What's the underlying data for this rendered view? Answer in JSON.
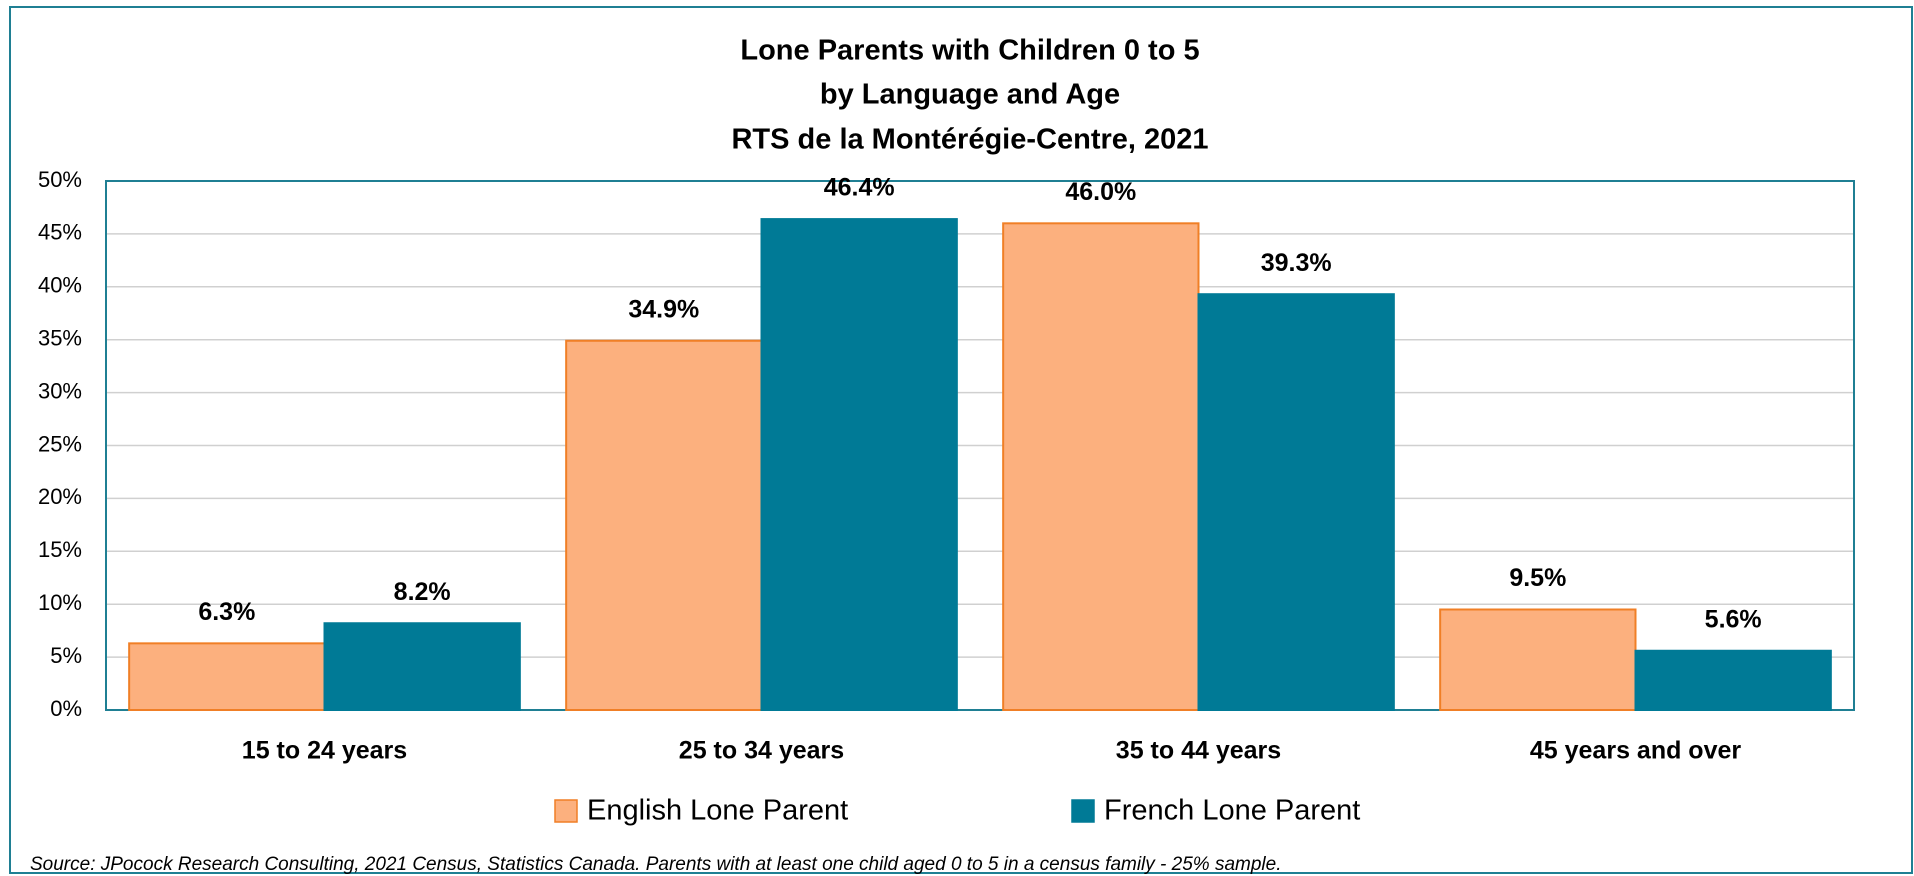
{
  "chart_data": {
    "type": "bar",
    "title": [
      "Lone Parents with Children 0 to 5",
      "by Language and Age",
      "RTS de la Montérégie-Centre, 2021"
    ],
    "categories": [
      "15 to 24 years",
      "25 to 34 years",
      "35 to 44 years",
      "45 years and over"
    ],
    "series": [
      {
        "name": "English Lone Parent",
        "color": "#fcb07e",
        "edge": "#f07f26",
        "values": [
          6.3,
          34.9,
          46.0,
          9.5
        ],
        "value_labels": [
          "6.3%",
          "34.9%",
          "46.0%",
          "9.5%"
        ]
      },
      {
        "name": "French Lone Parent",
        "color": "#007a96",
        "edge": "#007a96",
        "values": [
          8.2,
          46.4,
          39.3,
          5.6
        ],
        "value_labels": [
          "8.2%",
          "46.4%",
          "39.3%",
          "5.6%"
        ]
      }
    ],
    "ylim": [
      0,
      50
    ],
    "yticks": [
      {
        "value": 0,
        "label": "0%"
      },
      {
        "value": 5,
        "label": "5%"
      },
      {
        "value": 10,
        "label": "10%"
      },
      {
        "value": 15,
        "label": "15%"
      },
      {
        "value": 20,
        "label": "20%"
      },
      {
        "value": 25,
        "label": "25%"
      },
      {
        "value": 30,
        "label": "30%"
      },
      {
        "value": 35,
        "label": "35%"
      },
      {
        "value": 40,
        "label": "40%"
      },
      {
        "value": 45,
        "label": "45%"
      },
      {
        "value": 50,
        "label": "50%"
      }
    ],
    "grid": true,
    "legend": "bottom",
    "source": "Source: JPocock Research Consulting, 2021 Census, Statistics Canada. Parents with at least one child aged 0 to 5 in a census family - 25% sample."
  }
}
